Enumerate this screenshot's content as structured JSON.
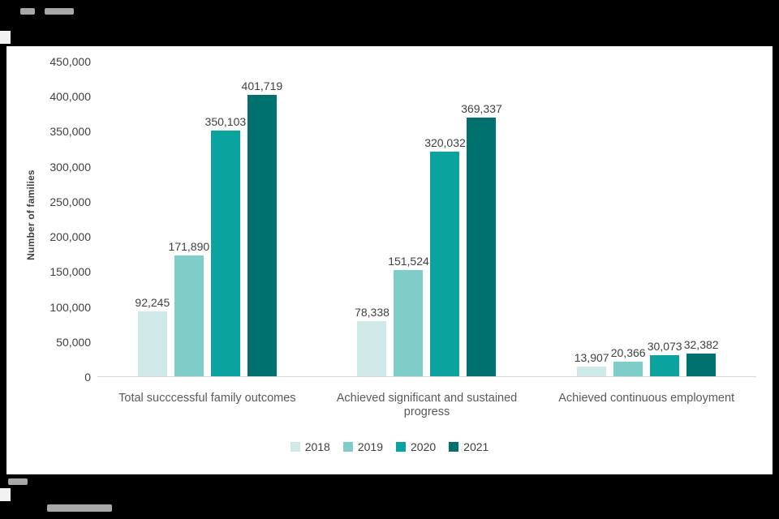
{
  "frame": {
    "background_color": "#000000",
    "panel_color": "#ffffff"
  },
  "chart_data": {
    "type": "bar",
    "title": "",
    "xlabel": "",
    "ylabel": "Number of families",
    "ylim": [
      0,
      450000
    ],
    "ytick_step": 50000,
    "ytick_labels": [
      "0",
      "50,000",
      "100,000",
      "150,000",
      "200,000",
      "250,000",
      "300,000",
      "350,000",
      "400,000",
      "450,000"
    ],
    "grid": false,
    "categories": [
      "Total succcessful family outcomes",
      "Achieved significant and sustained progress",
      "Achieved continuous employment"
    ],
    "series": [
      {
        "name": "2018",
        "color": "#cfe9e8",
        "values": [
          92245,
          78338,
          13907
        ],
        "labels": [
          "92,245",
          "78,338",
          "13,907"
        ]
      },
      {
        "name": "2019",
        "color": "#7ecdc9",
        "values": [
          171890,
          151524,
          20366
        ],
        "labels": [
          "171,890",
          "151,524",
          "20,366"
        ]
      },
      {
        "name": "2020",
        "color": "#0aa3a0",
        "values": [
          350103,
          320032,
          30073
        ],
        "labels": [
          "350,103",
          "320,032",
          "30,073"
        ]
      },
      {
        "name": "2021",
        "color": "#00716e",
        "values": [
          401719,
          369337,
          32382
        ],
        "labels": [
          "401,719",
          "369,337",
          "32,382"
        ]
      }
    ],
    "legend": {
      "position": "bottom",
      "entries": [
        "2018",
        "2019",
        "2020",
        "2021"
      ]
    }
  }
}
